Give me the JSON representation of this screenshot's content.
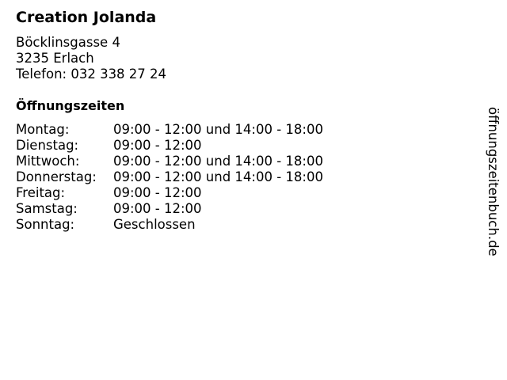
{
  "name": "Creation Jolanda",
  "address": {
    "street": "Böcklinsgasse 4",
    "city": "3235 Erlach",
    "phone": "Telefon: 032 338 27 24"
  },
  "hours_title": "Öffnungszeiten",
  "hours": [
    {
      "day": "Montag:",
      "time": "09:00 - 12:00 und 14:00 - 18:00"
    },
    {
      "day": "Dienstag:",
      "time": "09:00 - 12:00"
    },
    {
      "day": "Mittwoch:",
      "time": "09:00 - 12:00 und 14:00 - 18:00"
    },
    {
      "day": "Donnerstag:",
      "time": "09:00 - 12:00 und 14:00 - 18:00"
    },
    {
      "day": "Freitag:",
      "time": "09:00 - 12:00"
    },
    {
      "day": "Samstag:",
      "time": "09:00 - 12:00"
    },
    {
      "day": "Sonntag:",
      "time": "Geschlossen"
    }
  ],
  "watermark": "öffnungszeitenbuch.de"
}
